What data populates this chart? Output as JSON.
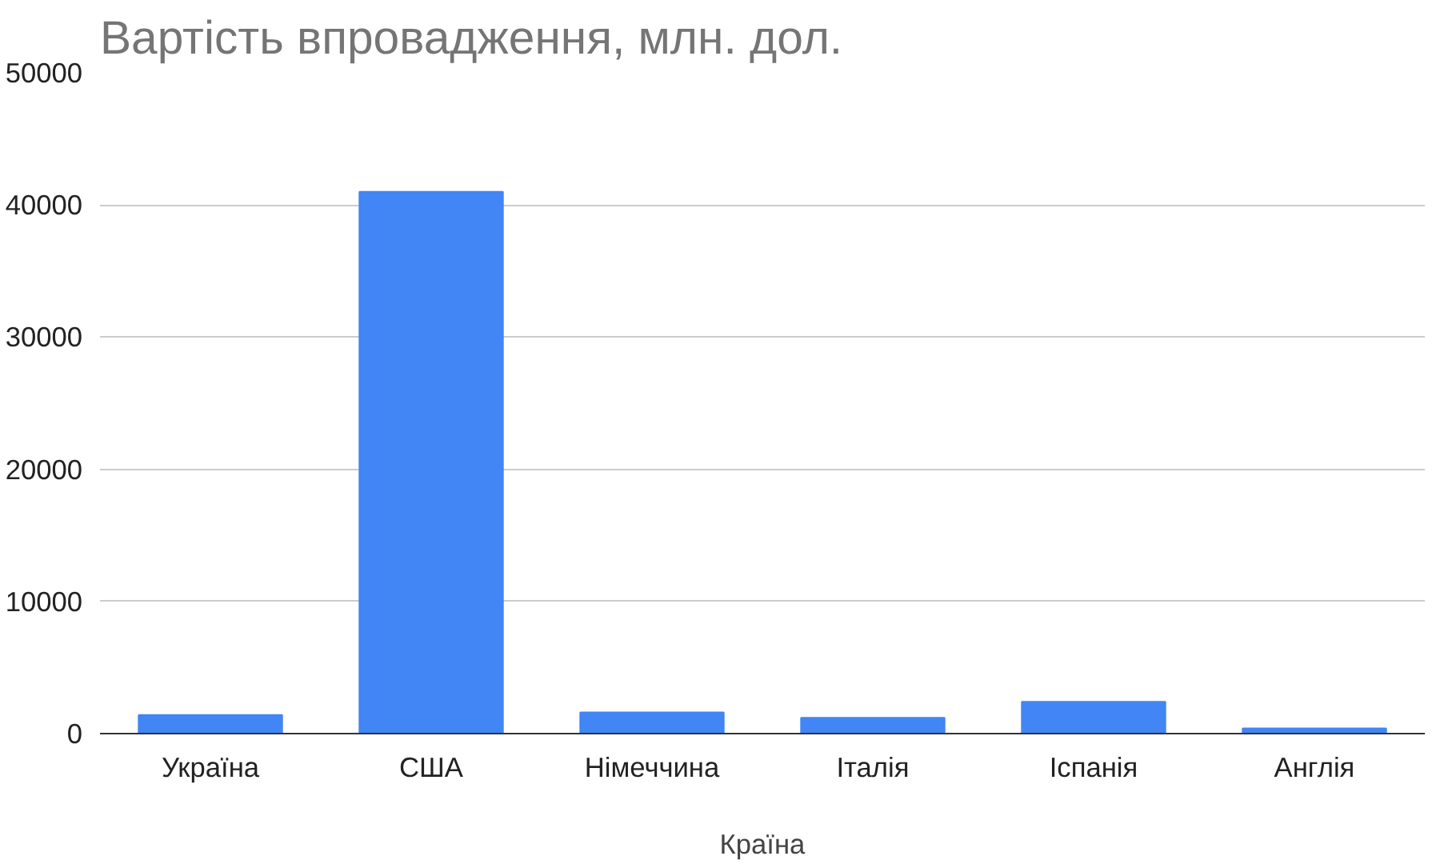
{
  "chart_data": {
    "type": "bar",
    "title": "Вартість впровадження, млн. дол.",
    "xlabel": "Країна",
    "categories": [
      "Україна",
      "США",
      "Німеччина",
      "Італія",
      "Іспанія",
      "Англія"
    ],
    "values": [
      1400,
      41000,
      1600,
      1200,
      2400,
      400
    ],
    "color": "#4285f4",
    "ylim": [
      0,
      50000
    ],
    "yticks": [
      0,
      10000,
      20000,
      30000,
      40000,
      50000
    ],
    "grid": "y"
  }
}
